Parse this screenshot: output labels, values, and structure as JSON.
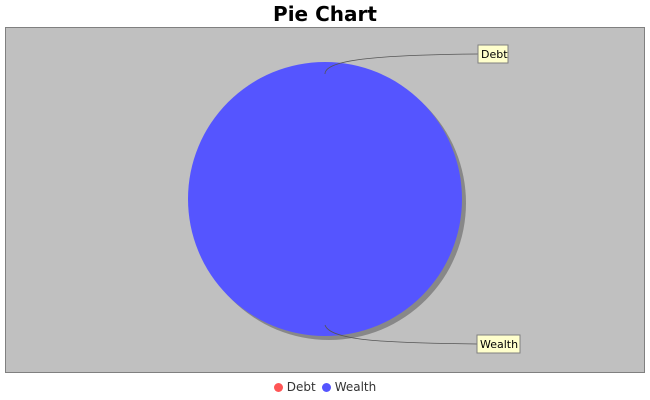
{
  "chart_data": {
    "type": "pie",
    "title": "Pie Chart",
    "slices": [
      {
        "label": "Debt",
        "value": 0,
        "color": "#ff5555"
      },
      {
        "label": "Wealth",
        "value": 100,
        "color": "#5555ff"
      }
    ],
    "legend": {
      "placement": "bottom",
      "entries": [
        "Debt",
        "Wealth"
      ]
    },
    "plot_background": "#c0c0c0",
    "callout_background": "#ffffcc"
  }
}
